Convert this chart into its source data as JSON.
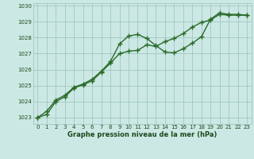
{
  "series1_x": [
    0,
    1,
    2,
    3,
    4,
    5,
    6,
    7,
    8,
    9,
    10,
    11,
    12,
    13,
    14,
    15,
    16,
    17,
    18,
    19,
    20,
    21,
    22,
    23
  ],
  "series1_y": [
    1023.0,
    1023.4,
    1024.1,
    1024.4,
    1024.9,
    1025.1,
    1025.4,
    1025.9,
    1026.5,
    1027.6,
    1028.1,
    1028.2,
    1027.95,
    1027.5,
    1027.1,
    1027.05,
    1027.3,
    1027.65,
    1028.05,
    1029.15,
    1029.55,
    1029.45,
    1029.45,
    1029.4
  ],
  "series2_x": [
    0,
    1,
    2,
    3,
    4,
    5,
    6,
    7,
    8,
    9,
    10,
    11,
    12,
    13,
    14,
    15,
    16,
    17,
    18,
    19,
    20,
    21,
    22,
    23
  ],
  "series2_y": [
    1023.0,
    1023.2,
    1024.0,
    1024.3,
    1024.85,
    1025.05,
    1025.3,
    1025.85,
    1026.4,
    1027.0,
    1027.15,
    1027.2,
    1027.55,
    1027.45,
    1027.75,
    1027.95,
    1028.25,
    1028.65,
    1028.95,
    1029.1,
    1029.45,
    1029.4,
    1029.4,
    1029.4
  ],
  "line_color": "#2a6b2a",
  "background_color": "#cce8e4",
  "grid_color": "#9fc8c0",
  "text_color": "#1a4a1a",
  "xlabel": "Graphe pression niveau de la mer (hPa)",
  "ylim": [
    1022.6,
    1030.15
  ],
  "xlim": [
    -0.5,
    23.5
  ],
  "yticks": [
    1023,
    1024,
    1025,
    1026,
    1027,
    1028,
    1029,
    1030
  ],
  "xticks": [
    0,
    1,
    2,
    3,
    4,
    5,
    6,
    7,
    8,
    9,
    10,
    11,
    12,
    13,
    14,
    15,
    16,
    17,
    18,
    19,
    20,
    21,
    22,
    23
  ],
  "linewidth": 1.0,
  "markersize": 4.0,
  "markeredgewidth": 1.0
}
